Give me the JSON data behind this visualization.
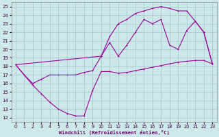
{
  "xlabel": "Windchill (Refroidissement éolien,°C)",
  "bg_color": "#cce8e8",
  "line_color": "#990099",
  "grid_color": "#aacccc",
  "xlim": [
    -0.5,
    23.5
  ],
  "ylim": [
    11.5,
    25.5
  ],
  "xticks": [
    0,
    1,
    2,
    3,
    4,
    5,
    6,
    7,
    8,
    9,
    10,
    11,
    12,
    13,
    14,
    15,
    16,
    17,
    18,
    19,
    20,
    21,
    22,
    23
  ],
  "yticks": [
    12,
    13,
    14,
    15,
    16,
    17,
    18,
    19,
    20,
    21,
    22,
    23,
    24,
    25
  ],
  "line1_x": [
    0,
    1,
    2,
    3,
    4,
    5,
    6,
    7,
    8,
    9,
    10,
    11,
    12,
    13,
    14,
    15,
    16,
    17,
    18,
    19,
    20,
    21,
    22,
    23
  ],
  "line1_y": [
    18.2,
    17.0,
    15.8,
    14.8,
    13.8,
    13.0,
    12.5,
    12.2,
    12.2,
    15.2,
    17.4,
    17.4,
    17.2,
    17.3,
    17.5,
    17.7,
    17.9,
    18.1,
    18.3,
    18.5,
    18.6,
    18.7,
    18.7,
    18.3
  ],
  "line2_x": [
    0,
    1,
    2,
    3,
    4,
    5,
    6,
    7,
    8,
    9,
    10,
    11,
    12,
    13,
    14,
    15,
    16,
    17,
    18,
    19,
    20,
    21,
    22,
    23
  ],
  "line2_y": [
    18.2,
    17.0,
    16.0,
    16.5,
    17.0,
    17.0,
    17.0,
    17.0,
    17.3,
    17.5,
    19.2,
    20.8,
    19.2,
    20.5,
    22.0,
    23.5,
    23.0,
    23.5,
    20.5,
    20.0,
    22.2,
    23.3,
    22.0,
    18.3
  ],
  "line3_x": [
    0,
    10,
    11,
    12,
    13,
    14,
    15,
    16,
    17,
    18,
    19,
    20,
    21,
    22,
    23
  ],
  "line3_y": [
    18.2,
    19.2,
    21.5,
    23.0,
    23.5,
    24.2,
    24.5,
    24.8,
    25.0,
    24.8,
    24.5,
    24.5,
    23.3,
    22.0,
    18.3
  ]
}
